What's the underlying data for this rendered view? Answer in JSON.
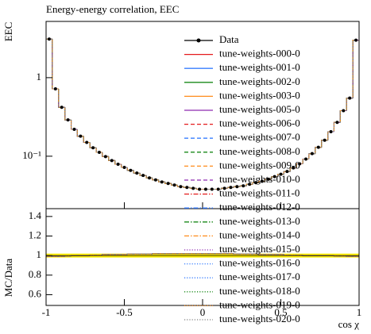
{
  "chart_data": {
    "type": "histogram",
    "title": "Energy-energy correlation, EEC",
    "ylabel": "EEC",
    "xlabel": "cos χ",
    "log_y": true,
    "bins": [
      -1,
      -0.96,
      -0.92,
      -0.88,
      -0.84,
      -0.8,
      -0.76,
      -0.72,
      -0.68,
      -0.64,
      -0.6,
      -0.56,
      -0.52,
      -0.48,
      -0.44,
      -0.4,
      -0.36,
      -0.32,
      -0.28,
      -0.24,
      -0.2,
      -0.16,
      -0.12,
      -0.08,
      -0.04,
      0,
      0.04,
      0.08,
      0.12,
      0.16,
      0.2,
      0.24,
      0.28,
      0.32,
      0.36,
      0.4,
      0.44,
      0.48,
      0.52,
      0.56,
      0.6,
      0.64,
      0.68,
      0.72,
      0.76,
      0.8,
      0.84,
      0.88,
      0.92,
      0.96,
      1
    ],
    "xlim": [
      -1,
      1
    ],
    "xticks": [
      -1,
      -0.5,
      0,
      0.5,
      1
    ],
    "ylim": [
      0.0215,
      5.2
    ],
    "yticks": [
      1,
      {
        "value": 0.1,
        "label": "10⁻¹"
      }
    ],
    "data": {
      "name": "Data",
      "color": "#000000",
      "values": [
        3.1,
        0.72,
        0.42,
        0.29,
        0.22,
        0.18,
        0.15,
        0.128,
        0.112,
        0.099,
        0.088,
        0.079,
        0.072,
        0.066,
        0.061,
        0.057,
        0.053,
        0.05,
        0.047,
        0.045,
        0.043,
        0.041,
        0.04,
        0.039,
        0.038,
        0.038,
        0.038,
        0.038,
        0.039,
        0.04,
        0.041,
        0.042,
        0.044,
        0.046,
        0.048,
        0.051,
        0.055,
        0.059,
        0.064,
        0.071,
        0.08,
        0.092,
        0.108,
        0.13,
        0.16,
        0.205,
        0.27,
        0.38,
        0.55,
        3.0
      ]
    },
    "mc_values": [
      3.1,
      0.72,
      0.42,
      0.29,
      0.22,
      0.18,
      0.15,
      0.128,
      0.112,
      0.099,
      0.088,
      0.079,
      0.072,
      0.066,
      0.061,
      0.057,
      0.053,
      0.05,
      0.047,
      0.045,
      0.043,
      0.041,
      0.04,
      0.039,
      0.038,
      0.038,
      0.038,
      0.038,
      0.039,
      0.04,
      0.041,
      0.042,
      0.044,
      0.046,
      0.048,
      0.051,
      0.055,
      0.059,
      0.064,
      0.071,
      0.08,
      0.092,
      0.108,
      0.13,
      0.16,
      0.205,
      0.27,
      0.38,
      0.55,
      3.0
    ],
    "series": [
      {
        "name": "tune-weights-000-0",
        "color": "#e41a1c",
        "dash": "solid"
      },
      {
        "name": "tune-weights-001-0",
        "color": "#377eff",
        "dash": "solid"
      },
      {
        "name": "tune-weights-002-0",
        "color": "#1a8a1a",
        "dash": "solid"
      },
      {
        "name": "tune-weights-003-0",
        "color": "#ff8c1a",
        "dash": "solid"
      },
      {
        "name": "tune-weights-005-0",
        "color": "#8e2ab0",
        "dash": "solid"
      },
      {
        "name": "tune-weights-006-0",
        "color": "#e41a1c",
        "dash": "dashed"
      },
      {
        "name": "tune-weights-007-0",
        "color": "#377eff",
        "dash": "dashed"
      },
      {
        "name": "tune-weights-008-0",
        "color": "#1a8a1a",
        "dash": "dashed"
      },
      {
        "name": "tune-weights-009-0",
        "color": "#ff8c1a",
        "dash": "dashed"
      },
      {
        "name": "tune-weights-010-0",
        "color": "#8e2ab0",
        "dash": "dashed"
      },
      {
        "name": "tune-weights-011-0",
        "color": "#e41a1c",
        "dash": "dashdot"
      },
      {
        "name": "tune-weights-012-0",
        "color": "#377eff",
        "dash": "dashdot"
      },
      {
        "name": "tune-weights-013-0",
        "color": "#1a8a1a",
        "dash": "dashdot"
      },
      {
        "name": "tune-weights-014-0",
        "color": "#ff8c1a",
        "dash": "dashdot"
      },
      {
        "name": "tune-weights-015-0",
        "color": "#8e2ab0",
        "dash": "dotted"
      },
      {
        "name": "tune-weights-016-0",
        "color": "#377eff",
        "dash": "dotted"
      },
      {
        "name": "tune-weights-017-0",
        "color": "#377eff",
        "dash": "dotted"
      },
      {
        "name": "tune-weights-018-0",
        "color": "#1a8a1a",
        "dash": "dotted"
      },
      {
        "name": "tune-weights-019-0",
        "color": "#ff8c1a",
        "dash": "dotted"
      },
      {
        "name": "tune-weights-020-0",
        "color": "#808080",
        "dash": "dotted"
      }
    ],
    "ratio": {
      "ylabel": "MC/Data",
      "ylim": [
        0.49,
        1.48
      ],
      "yticks": [
        1.4,
        1.2,
        1,
        0.8,
        0.6
      ],
      "band": [
        0.98,
        1.02
      ],
      "band_color": "#ffee00",
      "values": [
        0.99,
        0.99,
        0.99,
        0.995,
        1,
        1,
        1,
        1.005,
        1.005,
        1.01,
        1.01,
        1.01,
        1.01,
        1.015,
        1.015,
        1.015,
        1.015,
        1.02,
        1.02,
        1.02,
        1.02,
        1.02,
        1.02,
        1.02,
        1.02,
        1.02,
        1.02,
        1.02,
        1.02,
        1.02,
        1.015,
        1.015,
        1.015,
        1.015,
        1.01,
        1.01,
        1.01,
        1.01,
        1.005,
        1.005,
        1.005,
        1,
        1,
        1,
        1,
        1,
        0.995,
        0.995,
        0.99,
        0.99
      ]
    }
  }
}
